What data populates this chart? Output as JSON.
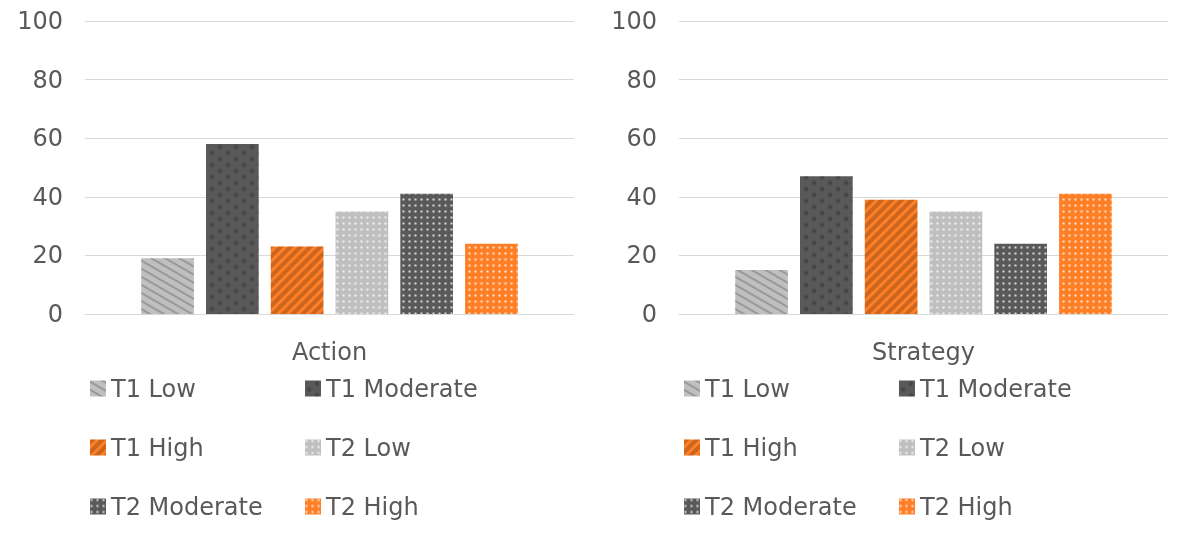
{
  "chart_data": [
    {
      "type": "bar",
      "categories": [
        "Action"
      ],
      "series": [
        {
          "name": "T1 Low",
          "color": "#bfbfbf",
          "values": [
            19
          ]
        },
        {
          "name": "T1 Moderate",
          "color": "#595959",
          "values": [
            58
          ]
        },
        {
          "name": "T1 High",
          "color": "#ff7f27",
          "values": [
            23
          ]
        },
        {
          "name": "T2 Low",
          "color": "#bfbfbf",
          "values": [
            35
          ]
        },
        {
          "name": "T2 Moderate",
          "color": "#595959",
          "values": [
            41
          ]
        },
        {
          "name": "T2 High",
          "color": "#ff7f27",
          "values": [
            24
          ]
        }
      ],
      "ylim": [
        0,
        100
      ],
      "yticks": [
        0,
        20,
        40,
        60,
        80,
        100
      ],
      "grid": "y",
      "legend": "bottom"
    },
    {
      "type": "bar",
      "categories": [
        "Strategy"
      ],
      "series": [
        {
          "name": "T1 Low",
          "color": "#bfbfbf",
          "values": [
            15
          ]
        },
        {
          "name": "T1 Moderate",
          "color": "#595959",
          "values": [
            47
          ]
        },
        {
          "name": "T1 High",
          "color": "#ff7f27",
          "values": [
            39
          ]
        },
        {
          "name": "T2 Low",
          "color": "#bfbfbf",
          "values": [
            35
          ]
        },
        {
          "name": "T2 Moderate",
          "color": "#595959",
          "values": [
            24
          ]
        },
        {
          "name": "T2 High",
          "color": "#ff7f27",
          "values": [
            41
          ]
        }
      ],
      "ylim": [
        0,
        100
      ],
      "yticks": [
        0,
        20,
        40,
        60,
        80,
        100
      ],
      "grid": "y",
      "legend": "bottom"
    }
  ]
}
